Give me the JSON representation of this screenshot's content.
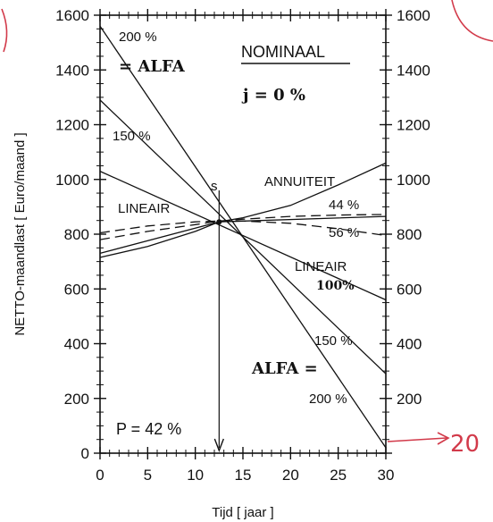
{
  "chart_data": {
    "type": "line",
    "xlabel": "Tijd  [  jaar  ]",
    "ylabel": "NETTO-maandlast  [  Euro/maand  ]",
    "xlim": [
      0,
      30
    ],
    "ylim": [
      0,
      1600
    ],
    "xticks": [
      0,
      5,
      10,
      15,
      20,
      25,
      30
    ],
    "yticks": [
      0,
      200,
      400,
      600,
      800,
      1000,
      1200,
      1400,
      1600
    ],
    "right_axis": true,
    "grid": false,
    "series": [
      {
        "name": "ALFA = 200 %",
        "style": "solid",
        "x": [
          0,
          30
        ],
        "y": [
          1560,
          20
        ]
      },
      {
        "name": "ALFA = 150 %",
        "style": "solid",
        "x": [
          0,
          30
        ],
        "y": [
          1290,
          290
        ]
      },
      {
        "name": "LINEAIR 100%",
        "style": "solid",
        "x": [
          0,
          30
        ],
        "y": [
          1030,
          560
        ]
      },
      {
        "name": "ANNUITEIT",
        "style": "solid",
        "x": [
          0,
          5,
          10,
          12.5,
          15,
          20,
          25,
          30
        ],
        "y": [
          715,
          755,
          810,
          845,
          860,
          905,
          980,
          1060
        ]
      },
      {
        "name": "LINEAIR 44 %",
        "style": "solid",
        "x": [
          0,
          12.5,
          30
        ],
        "y": [
          730,
          845,
          865
        ]
      },
      {
        "name": "44 %",
        "style": "dashed",
        "x": [
          0,
          5,
          10,
          12.5,
          15,
          20,
          25,
          30
        ],
        "y": [
          780,
          810,
          835,
          848,
          855,
          865,
          870,
          872
        ]
      },
      {
        "name": "56 %",
        "style": "dashed",
        "x": [
          0,
          5,
          10,
          12.5,
          15,
          20,
          25,
          30
        ],
        "y": [
          805,
          830,
          845,
          848,
          848,
          840,
          820,
          795
        ]
      }
    ],
    "intersection": {
      "label": "s",
      "x": 12.5,
      "y": 845
    }
  },
  "annotations": {
    "top_200": "200  %",
    "alfa_top": "= ALFA",
    "nominaal": "NOMINAAL",
    "j_eq": "j  =  0  %",
    "label_150_top": "150  %",
    "s_label": "s",
    "annuiteit": "ANNUITEIT",
    "lineair_left": "LINEAIR",
    "pct_44": "44  %",
    "pct_56": "56  %",
    "lineair_right": "LINEAIR",
    "pct_100": "100%",
    "label_150_bottom": "150  %",
    "alfa_bottom": "ALFA  =",
    "label_200_bottom": "200  %",
    "p_eq": "P  =  42  %",
    "handwritten_20": "20"
  },
  "colors": {
    "ink": "#111111",
    "handwriting": "#d23a4a"
  }
}
